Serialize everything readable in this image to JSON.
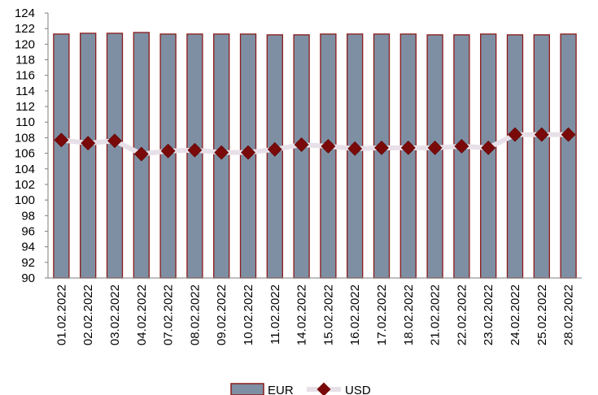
{
  "chart_data": {
    "type": "bar",
    "categories": [
      "01.02.2022",
      "02.02.2022",
      "03.02.2022",
      "04.02.2022",
      "07.02.2022",
      "08.02.2022",
      "09.02.2022",
      "10.02.2022",
      "11.02.2022",
      "14.02.2022",
      "15.02.2022",
      "16.02.2022",
      "17.02.2022",
      "18.02.2022",
      "21.02.2022",
      "22.02.2022",
      "23.02.2022",
      "24.02.2022",
      "25.02.2022",
      "28.02.2022"
    ],
    "series": [
      {
        "name": "EUR",
        "kind": "bar",
        "color": "#7f8fa3",
        "edge": "#8b1a1a",
        "values": [
          121.3,
          121.4,
          121.4,
          121.5,
          121.3,
          121.3,
          121.3,
          121.3,
          121.2,
          121.2,
          121.3,
          121.3,
          121.3,
          121.3,
          121.2,
          121.2,
          121.3,
          121.2,
          121.2,
          121.3
        ]
      },
      {
        "name": "USD",
        "kind": "line",
        "color": "#e8e0e8",
        "marker": "#7a0a0a",
        "values": [
          107.7,
          107.3,
          107.6,
          105.9,
          106.3,
          106.4,
          106.1,
          106.1,
          106.5,
          107.1,
          106.9,
          106.6,
          106.7,
          106.7,
          106.7,
          106.9,
          106.7,
          108.4,
          108.4,
          108.4
        ]
      }
    ],
    "xlabel": "",
    "ylabel": "",
    "ylim": [
      90,
      124
    ],
    "yticks": [
      "90",
      "92",
      "94",
      "96",
      "98",
      "100",
      "102",
      "104",
      "106",
      "108",
      "110",
      "112",
      "114",
      "116",
      "118",
      "120",
      "122",
      "124"
    ],
    "grid": false,
    "legend": "bottom"
  }
}
